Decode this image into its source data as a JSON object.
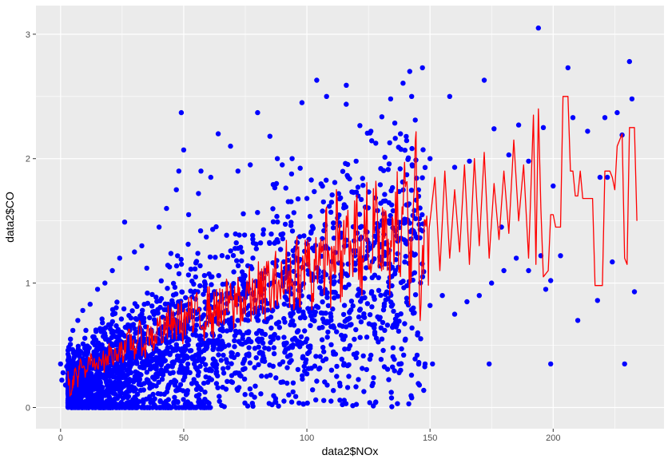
{
  "chart_data": {
    "type": "scatter",
    "xlabel": "data2$NOx",
    "ylabel": "data2$CO",
    "xlim": [
      -10,
      245
    ],
    "ylim": [
      -0.17,
      3.23
    ],
    "x_ticks": [
      0,
      50,
      100,
      150,
      200
    ],
    "x_tick_labels": [
      "0",
      "50",
      "100",
      "150",
      "200"
    ],
    "y_ticks": [
      0,
      1,
      2,
      3
    ],
    "y_tick_labels": [
      "0",
      "1",
      "2",
      "3"
    ],
    "grid": true,
    "legend": "none",
    "series": [
      {
        "type": "scatter",
        "color": "#0000ff",
        "points": [
          [
            0,
            0.35
          ],
          [
            0.5,
            0.22
          ],
          [
            1,
            0.28
          ],
          [
            2,
            0.18
          ],
          [
            2.5,
            0.33
          ],
          [
            4,
            0.55
          ],
          [
            5,
            0.62
          ],
          [
            7,
            0.7
          ],
          [
            9,
            0.78
          ],
          [
            12,
            0.83
          ],
          [
            15,
            0.95
          ],
          [
            18,
            1.0
          ],
          [
            21,
            1.1
          ],
          [
            24,
            1.2
          ],
          [
            26,
            1.49
          ],
          [
            30,
            1.25
          ],
          [
            33,
            1.3
          ],
          [
            35,
            1.12
          ],
          [
            40,
            1.45
          ],
          [
            43,
            1.6
          ],
          [
            47,
            1.75
          ],
          [
            48,
            1.9
          ],
          [
            49,
            2.37
          ],
          [
            50,
            2.07
          ],
          [
            52,
            1.55
          ],
          [
            56,
            1.72
          ],
          [
            57,
            1.9
          ],
          [
            61,
            1.85
          ],
          [
            64,
            2.2
          ],
          [
            69,
            2.1
          ],
          [
            72,
            1.9
          ],
          [
            77,
            1.95
          ],
          [
            80,
            2.37
          ],
          [
            85,
            2.18
          ],
          [
            88,
            2.0
          ],
          [
            90,
            1.95
          ],
          [
            94,
            2.0
          ],
          [
            98,
            2.45
          ],
          [
            100,
            1.68
          ],
          [
            104,
            2.63
          ],
          [
            108,
            2.5
          ],
          [
            110,
            1.65
          ],
          [
            116,
            2.59
          ],
          [
            120,
            1.98
          ],
          [
            126,
            2.22
          ],
          [
            130,
            1.92
          ],
          [
            134,
            2.48
          ],
          [
            138,
            2.2
          ],
          [
            144,
            2.31
          ],
          [
            150,
            2.0
          ],
          [
            158,
            2.5
          ],
          [
            160,
            1.93
          ],
          [
            166,
            1.98
          ],
          [
            172,
            2.63
          ],
          [
            176,
            2.24
          ],
          [
            179,
            1.45
          ],
          [
            182,
            2.03
          ],
          [
            186,
            2.27
          ],
          [
            190,
            1.98
          ],
          [
            194,
            3.05
          ],
          [
            196,
            2.25
          ],
          [
            199,
            1.02
          ],
          [
            200,
            1.78
          ],
          [
            203,
            1.22
          ],
          [
            206,
            2.73
          ],
          [
            208,
            2.33
          ],
          [
            210,
            0.7
          ],
          [
            214,
            2.22
          ],
          [
            218,
            0.86
          ],
          [
            219,
            1.85
          ],
          [
            221,
            2.33
          ],
          [
            222,
            1.85
          ],
          [
            224,
            1.17
          ],
          [
            226,
            2.37
          ],
          [
            228,
            2.19
          ],
          [
            229,
            0.35
          ],
          [
            231,
            2.78
          ],
          [
            232,
            2.48
          ],
          [
            233,
            0.93
          ],
          [
            138,
            0.35
          ],
          [
            148,
            0.35
          ],
          [
            151,
            0.35
          ],
          [
            174,
            0.35
          ],
          [
            199,
            0.35
          ],
          [
            110,
            0.3
          ],
          [
            117,
            0.25
          ],
          [
            120,
            0.4
          ],
          [
            126,
            0.42
          ],
          [
            135,
            0.48
          ],
          [
            140,
            0.55
          ],
          [
            145,
            0.6
          ],
          [
            150,
            0.82
          ],
          [
            155,
            0.9
          ],
          [
            160,
            0.75
          ],
          [
            165,
            0.85
          ],
          [
            170,
            0.9
          ],
          [
            175,
            1.0
          ],
          [
            180,
            1.1
          ],
          [
            185,
            1.2
          ],
          [
            190,
            1.1
          ],
          [
            195,
            1.22
          ],
          [
            197,
            0.95
          ]
        ]
      },
      {
        "type": "line",
        "color": "#ff0000",
        "points": [
          [
            3,
            0.25
          ],
          [
            4,
            0.12
          ],
          [
            5,
            0.2
          ],
          [
            6,
            0.3
          ],
          [
            7,
            0.22
          ],
          [
            8,
            0.35
          ],
          [
            10,
            0.27
          ],
          [
            12,
            0.38
          ],
          [
            14,
            0.32
          ],
          [
            16,
            0.42
          ],
          [
            18,
            0.35
          ],
          [
            20,
            0.45
          ],
          [
            22,
            0.4
          ],
          [
            24,
            0.5
          ],
          [
            26,
            0.44
          ],
          [
            28,
            0.55
          ],
          [
            30,
            0.48
          ],
          [
            32,
            0.58
          ],
          [
            34,
            0.5
          ],
          [
            36,
            0.6
          ],
          [
            38,
            0.55
          ],
          [
            40,
            0.66
          ],
          [
            42,
            0.58
          ],
          [
            44,
            0.7
          ],
          [
            46,
            0.62
          ],
          [
            48,
            0.74
          ],
          [
            50,
            0.66
          ],
          [
            52,
            0.77
          ],
          [
            54,
            0.68
          ],
          [
            56,
            0.8
          ],
          [
            58,
            0.7
          ],
          [
            60,
            0.82
          ],
          [
            62,
            0.72
          ],
          [
            64,
            0.85
          ],
          [
            66,
            0.74
          ],
          [
            68,
            0.88
          ],
          [
            70,
            0.76
          ],
          [
            72,
            0.92
          ],
          [
            74,
            0.8
          ],
          [
            76,
            0.95
          ],
          [
            78,
            0.82
          ],
          [
            80,
            1.0
          ],
          [
            82,
            0.86
          ],
          [
            84,
            1.04
          ],
          [
            86,
            0.88
          ],
          [
            88,
            1.08
          ],
          [
            90,
            0.92
          ],
          [
            92,
            1.14
          ],
          [
            94,
            0.96
          ],
          [
            96,
            1.18
          ],
          [
            98,
            1.0
          ],
          [
            100,
            1.25
          ],
          [
            102,
            0.98
          ],
          [
            104,
            1.3
          ],
          [
            106,
            1.02
          ],
          [
            108,
            1.4
          ],
          [
            110,
            1.0
          ],
          [
            112,
            1.45
          ],
          [
            114,
            1.05
          ],
          [
            116,
            1.5
          ],
          [
            118,
            1.08
          ],
          [
            120,
            1.55
          ],
          [
            122,
            1.1
          ],
          [
            124,
            1.6
          ],
          [
            126,
            1.12
          ],
          [
            128,
            1.7
          ],
          [
            130,
            1.1
          ],
          [
            132,
            1.65
          ],
          [
            134,
            1.0
          ],
          [
            136,
            1.75
          ],
          [
            138,
            1.1
          ],
          [
            140,
            1.8
          ],
          [
            142,
            1.05
          ],
          [
            144,
            2.15
          ],
          [
            146,
            1.0
          ],
          [
            148,
            1.7
          ],
          [
            150,
            1.15
          ],
          [
            152,
            1.85
          ],
          [
            154,
            1.1
          ],
          [
            156,
            1.9
          ],
          [
            158,
            1.2
          ],
          [
            160,
            1.75
          ],
          [
            162,
            1.25
          ],
          [
            164,
            1.95
          ],
          [
            166,
            1.15
          ],
          [
            168,
            2.0
          ],
          [
            170,
            1.3
          ],
          [
            172,
            2.05
          ],
          [
            174,
            1.2
          ],
          [
            176,
            1.8
          ],
          [
            178,
            1.35
          ],
          [
            180,
            1.9
          ],
          [
            182,
            1.4
          ],
          [
            184,
            2.15
          ],
          [
            186,
            1.5
          ],
          [
            188,
            1.95
          ],
          [
            190,
            1.2
          ],
          [
            192,
            2.35
          ],
          [
            193,
            1.15
          ],
          [
            194,
            2.4
          ],
          [
            195,
            1.6
          ],
          [
            196,
            1.05
          ],
          [
            198,
            1.1
          ],
          [
            199,
            1.55
          ],
          [
            200,
            1.55
          ],
          [
            201,
            1.45
          ],
          [
            203,
            1.45
          ],
          [
            204,
            2.5
          ],
          [
            206,
            2.5
          ],
          [
            207,
            1.9
          ],
          [
            208,
            1.9
          ],
          [
            209,
            1.7
          ],
          [
            210,
            1.7
          ],
          [
            211,
            1.9
          ],
          [
            212,
            1.68
          ],
          [
            214,
            1.68
          ],
          [
            216,
            1.68
          ],
          [
            217,
            0.98
          ],
          [
            220,
            0.98
          ],
          [
            221,
            1.9
          ],
          [
            223,
            1.9
          ],
          [
            224,
            1.85
          ],
          [
            225,
            1.75
          ],
          [
            226,
            2.1
          ],
          [
            228,
            2.2
          ],
          [
            229,
            1.2
          ],
          [
            230,
            1.15
          ],
          [
            231,
            2.25
          ],
          [
            233,
            2.25
          ],
          [
            234,
            1.5
          ]
        ]
      }
    ]
  },
  "palette": {
    "panel_background": "#ebebeb",
    "grid_major": "#ffffff",
    "point_color": "#0000ff",
    "line_color": "#ff0000"
  }
}
